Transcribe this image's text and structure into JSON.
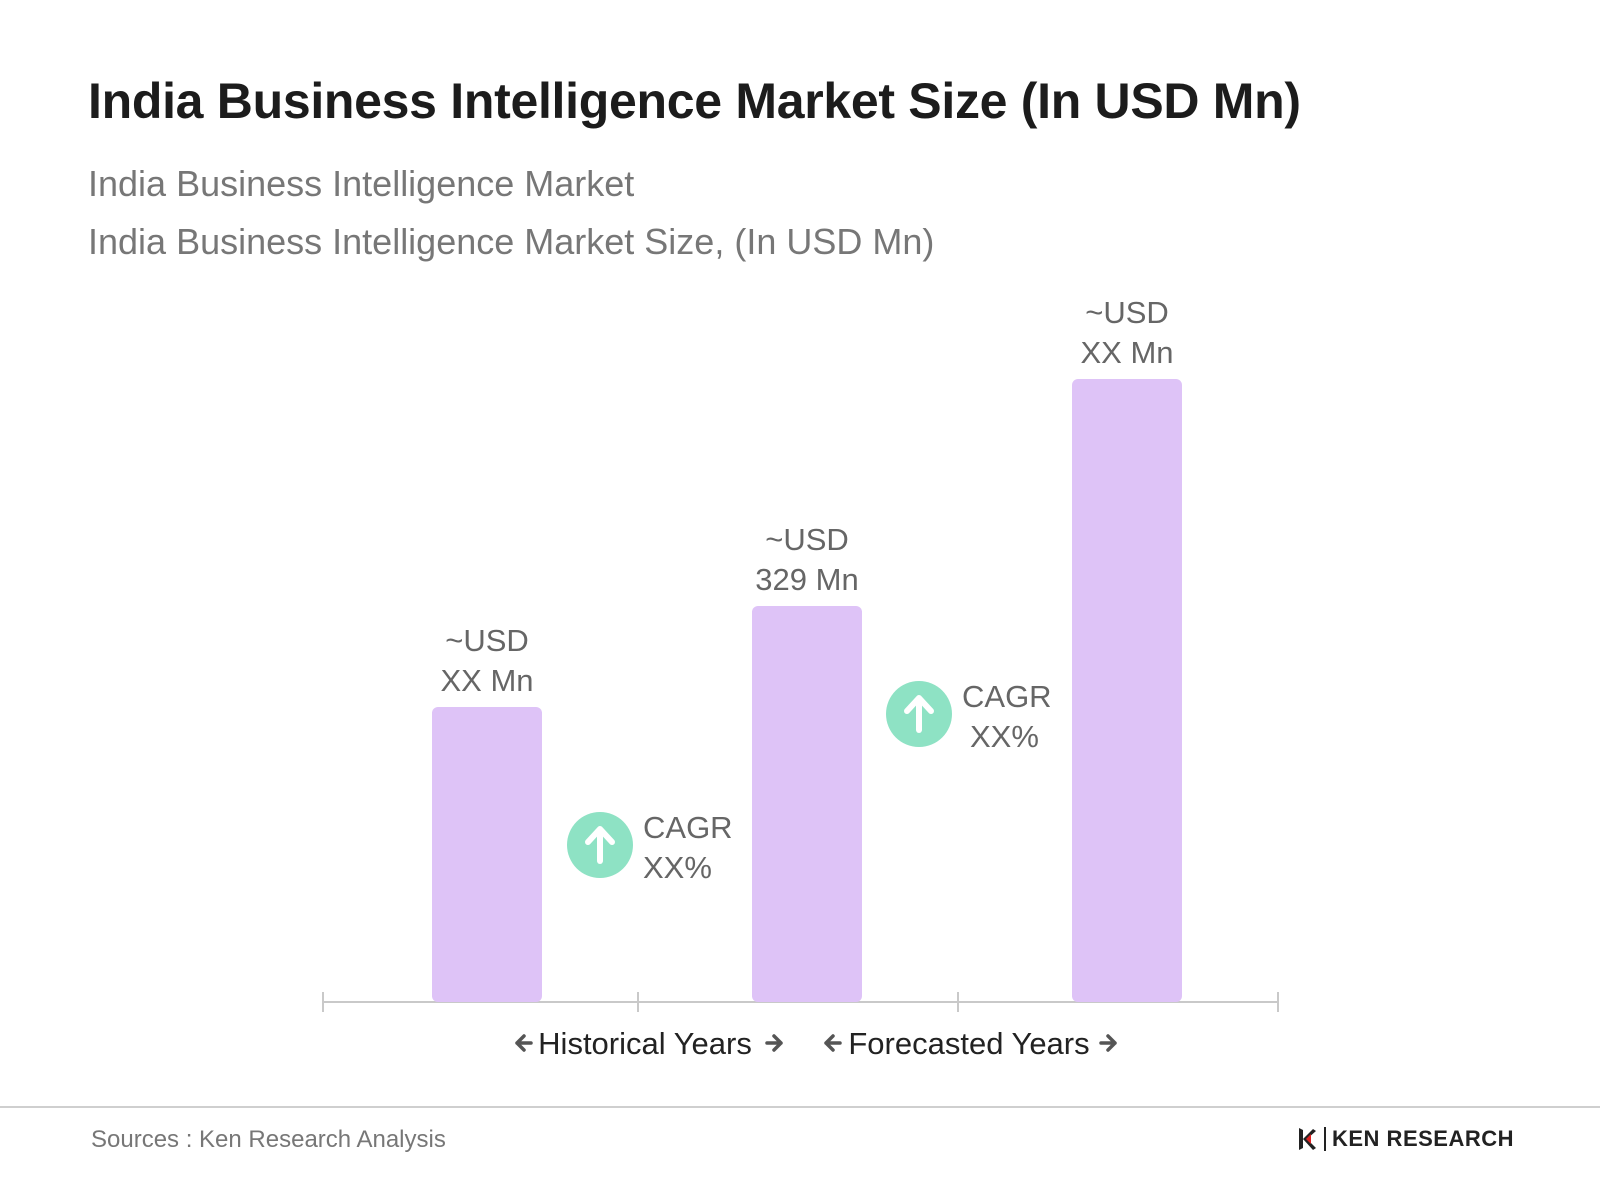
{
  "header": {
    "title": "India Business Intelligence Market Size (In USD Mn)",
    "subtitle_1": "India Business Intelligence Market",
    "subtitle_2": "India Business Intelligence Market Size, (In USD Mn)"
  },
  "chart_data": {
    "type": "bar",
    "categories": [
      "",
      "",
      ""
    ],
    "values": [
      null,
      329,
      null
    ],
    "bar_labels": [
      [
        "~USD",
        "XX Mn"
      ],
      [
        "~USD",
        "329 Mn"
      ],
      [
        "~USD",
        "XX Mn"
      ]
    ],
    "cagr": [
      [
        "CAGR",
        "XX%"
      ],
      [
        "CAGR",
        "XX%"
      ]
    ],
    "axis_segments": [
      {
        "label": "Historical Years"
      },
      {
        "label": "Forecasted Years"
      }
    ],
    "grid": false,
    "legend": "none",
    "colors": {
      "bar": "#dec3f7",
      "cagr_icon": "#8ee2c4",
      "axis": "#c9c9c9",
      "label": "#666666",
      "arrow": "#555555"
    }
  },
  "footer": {
    "source": "Sources : Ken Research Analysis",
    "logo_text": "KEN RESEARCH",
    "logo_icon": "ken-research-logo-icon"
  }
}
